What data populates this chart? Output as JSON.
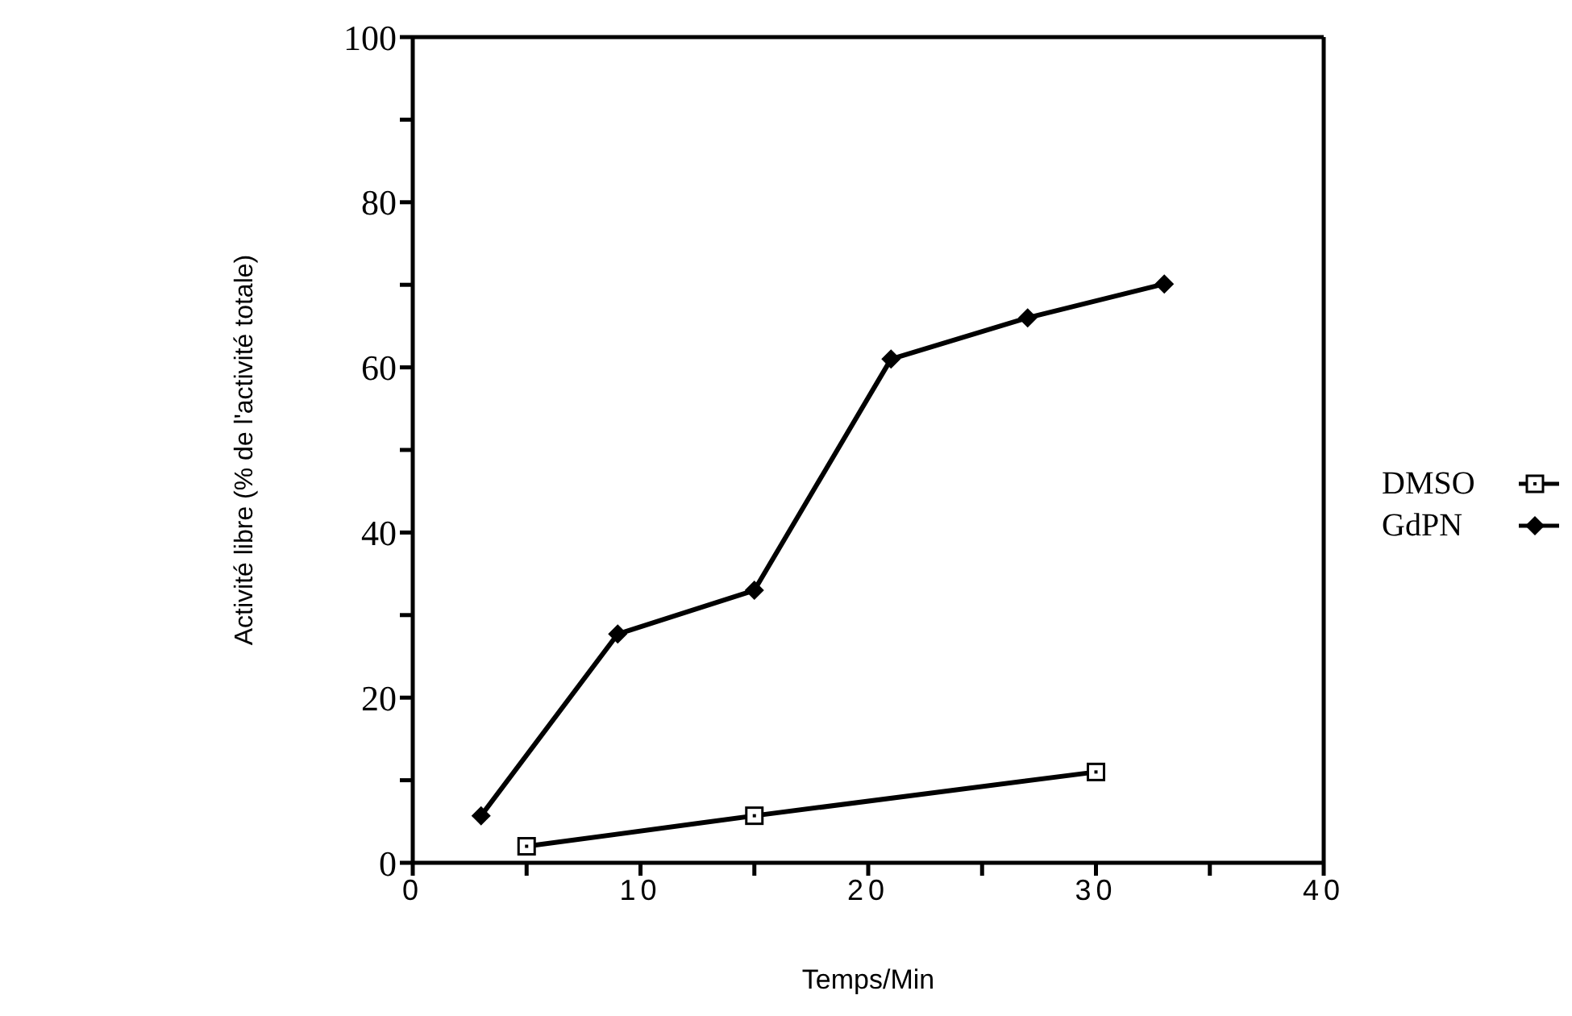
{
  "chart_data": {
    "type": "line",
    "xlabel": "Temps/Min",
    "ylabel": "Activité libre (% de l'activité totale)",
    "xlim": [
      0,
      40
    ],
    "xticks": [
      0,
      {
        "value": 5,
        "label": null
      },
      10,
      {
        "value": 15,
        "label": null
      },
      20,
      {
        "value": 25,
        "label": null
      },
      30,
      {
        "value": 35,
        "label": null
      },
      40
    ],
    "ylim": [
      0,
      100
    ],
    "yticks": [
      0,
      {
        "value": 10,
        "label": null
      },
      20,
      {
        "value": 30,
        "label": null
      },
      40,
      {
        "value": 50,
        "label": null
      },
      60,
      {
        "value": 70,
        "label": null
      },
      80,
      {
        "value": 90,
        "label": null
      },
      100
    ],
    "legend": "right",
    "line_style": "solid",
    "series": [
      {
        "name": "DMSO",
        "color": "#000000",
        "marker": "square",
        "x": [
          5,
          15,
          30
        ],
        "values": [
          2,
          5.7,
          11
        ]
      },
      {
        "name": "GdPN",
        "color": "#000000",
        "marker": "diamond",
        "x": [
          3,
          9,
          15,
          21,
          27,
          33
        ],
        "values": [
          5.7,
          27.7,
          33,
          61,
          66,
          70.1
        ]
      }
    ]
  }
}
